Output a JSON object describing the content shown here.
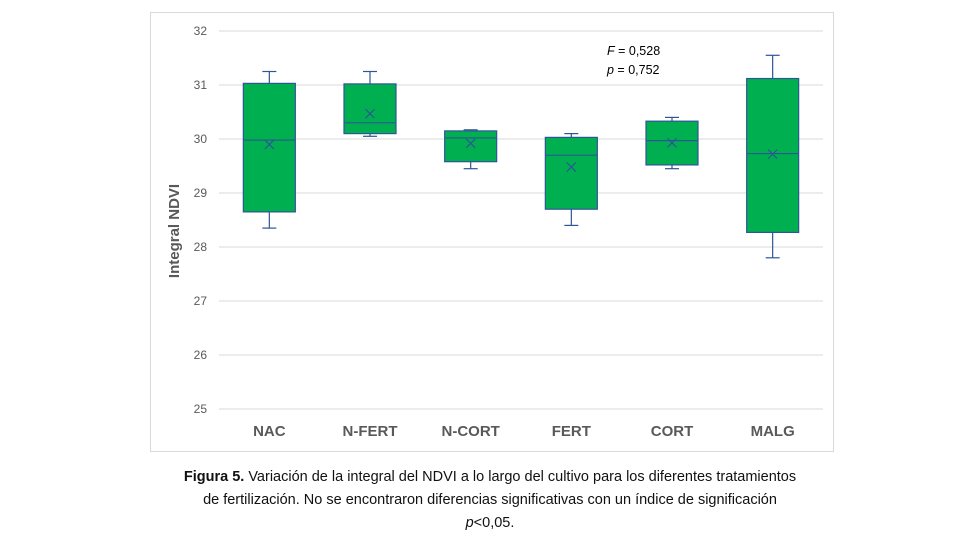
{
  "chart_data": {
    "type": "box",
    "ylabel": "Integral NDVI",
    "ylim": [
      25,
      32
    ],
    "yticks": [
      25,
      26,
      27,
      28,
      29,
      30,
      31,
      32
    ],
    "grid": true,
    "box_color": "#00b050",
    "line_color": "#2e5597",
    "categories": [
      "NAC",
      "N-FERT",
      "N-CORT",
      "FERT",
      "CORT",
      "MALG"
    ],
    "boxes": [
      {
        "category": "NAC",
        "min": 28.35,
        "q1": 28.65,
        "median": 29.98,
        "q3": 31.03,
        "max": 31.25,
        "mean": 29.9
      },
      {
        "category": "N-FERT",
        "min": 30.05,
        "q1": 30.1,
        "median": 30.3,
        "q3": 31.02,
        "max": 31.25,
        "mean": 30.47
      },
      {
        "category": "N-CORT",
        "min": 29.45,
        "q1": 29.58,
        "median": 30.02,
        "q3": 30.15,
        "max": 30.17,
        "mean": 29.92
      },
      {
        "category": "FERT",
        "min": 28.4,
        "q1": 28.7,
        "median": 29.7,
        "q3": 30.03,
        "max": 30.1,
        "mean": 29.48
      },
      {
        "category": "CORT",
        "min": 29.45,
        "q1": 29.52,
        "median": 29.97,
        "q3": 30.33,
        "max": 30.4,
        "mean": 29.93
      },
      {
        "category": "MALG",
        "min": 27.8,
        "q1": 28.27,
        "median": 29.73,
        "q3": 31.12,
        "max": 31.55,
        "mean": 29.72
      }
    ],
    "annotation": {
      "f_label": "F",
      "f_value": " = 0,528",
      "p_label": "p",
      "p_value": " = 0,752"
    }
  },
  "caption": {
    "label": "Figura 5.",
    "line1": " Variación de la integral del NDVI a lo largo del cultivo para los diferentes tratamientos",
    "line2": "de fertilización. No se encontraron diferencias significativas con un índice de significación",
    "line3_italic": "p",
    "line3_rest": "<0,05."
  }
}
